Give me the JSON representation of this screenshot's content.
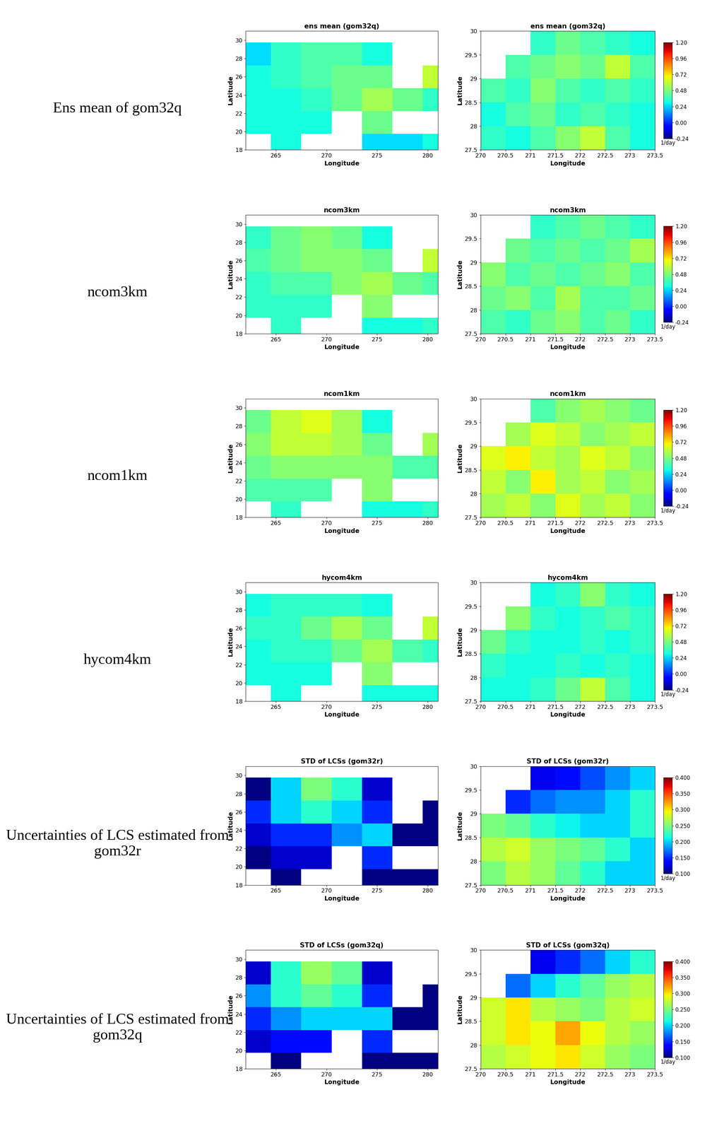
{
  "row_labels": [
    "Ens mean of gom32q",
    "ncom3km",
    "ncom1km",
    "hycom4km",
    "Uncertainties of LCS estimated from gom32r",
    "Uncertainties of LCS estimated from gom32q"
  ],
  "chart_data": [
    {
      "type": "heatmap",
      "title": "ens mean (gom32q)",
      "xlabel": "Longitude",
      "ylabel": "Latitude",
      "xlim": [
        262,
        281
      ],
      "xticks": [
        265,
        270,
        275,
        280
      ],
      "ylim": [
        18,
        31
      ],
      "yticks": [
        18,
        20,
        22,
        24,
        26,
        28,
        30
      ],
      "x": [
        263,
        266,
        269,
        272,
        275,
        278,
        281
      ],
      "y": [
        18.5,
        21,
        23.5,
        26,
        28.5,
        31
      ],
      "cells": [
        [
          null,
          0.3,
          null,
          null,
          0.25,
          0.25,
          0.3
        ],
        [
          0.3,
          0.3,
          0.3,
          null,
          0.45,
          null,
          null
        ],
        [
          0.3,
          0.3,
          0.35,
          0.45,
          0.55,
          0.45,
          0.35
        ],
        [
          0.3,
          0.35,
          0.4,
          0.45,
          0.45,
          null,
          0.6
        ],
        [
          0.25,
          0.35,
          0.4,
          0.4,
          0.3,
          null,
          null
        ],
        [
          null,
          null,
          null,
          null,
          null,
          null,
          null
        ]
      ],
      "clim": [
        -0.24,
        1.2
      ]
    },
    {
      "type": "heatmap",
      "title": "ens mean (gom32q)",
      "xlabel": "Longitude",
      "ylabel": "Latitude",
      "xlim": [
        270,
        273.5
      ],
      "xticks": [
        270,
        270.5,
        271,
        271.5,
        272,
        272.5,
        273,
        273.5
      ],
      "ylim": [
        27.5,
        30
      ],
      "yticks": [
        27.5,
        28,
        28.5,
        29,
        29.5,
        30
      ],
      "x": [
        270.25,
        270.75,
        271.25,
        271.75,
        272.25,
        272.75,
        273.25
      ],
      "y": [
        27.75,
        28.25,
        28.75,
        29.25,
        29.75
      ],
      "cells": [
        [
          0.35,
          0.3,
          0.4,
          0.5,
          0.6,
          0.4,
          0.3
        ],
        [
          0.3,
          0.4,
          0.45,
          0.35,
          0.4,
          0.35,
          0.3
        ],
        [
          0.4,
          0.35,
          0.5,
          0.4,
          0.35,
          0.4,
          0.35
        ],
        [
          null,
          0.4,
          0.45,
          0.5,
          0.45,
          0.6,
          0.4
        ],
        [
          null,
          null,
          0.35,
          0.45,
          0.4,
          0.35,
          0.3
        ]
      ],
      "clim": [
        -0.24,
        1.2
      ],
      "cticks": [
        -0.24,
        0,
        0.24,
        0.48,
        0.72,
        0.96,
        1.2
      ],
      "cticks_labels": [
        "-0.24",
        "0.00",
        "0.24",
        "0.48",
        "0.72",
        "0.96",
        "1.20"
      ],
      "clabel": "1/day"
    },
    {
      "type": "heatmap",
      "title": "ncom3km",
      "xlabel": "Longitude",
      "ylabel": "Latitude",
      "xlim": [
        262,
        281
      ],
      "xticks": [
        265,
        270,
        275,
        280
      ],
      "ylim": [
        18,
        31
      ],
      "yticks": [
        18,
        20,
        22,
        24,
        26,
        28,
        30
      ],
      "x": [
        263,
        266,
        269,
        272,
        275,
        278,
        281
      ],
      "y": [
        18.5,
        21,
        23.5,
        26,
        28.5,
        31
      ],
      "cells": [
        [
          null,
          0.35,
          null,
          null,
          0.3,
          0.3,
          0.35
        ],
        [
          0.35,
          0.35,
          0.35,
          null,
          0.5,
          null,
          null
        ],
        [
          0.35,
          0.4,
          0.4,
          0.5,
          0.55,
          0.45,
          0.4
        ],
        [
          0.4,
          0.45,
          0.5,
          0.5,
          0.45,
          null,
          0.6
        ],
        [
          0.35,
          0.45,
          0.5,
          0.45,
          0.3,
          null,
          null
        ],
        [
          null,
          null,
          null,
          null,
          null,
          null,
          null
        ]
      ],
      "clim": [
        -0.24,
        1.2
      ]
    },
    {
      "type": "heatmap",
      "title": "ncom3km",
      "xlabel": "Longitude",
      "ylabel": "Latitude",
      "xlim": [
        270,
        273.5
      ],
      "xticks": [
        270,
        270.5,
        271,
        271.5,
        272,
        272.5,
        273,
        273.5
      ],
      "ylim": [
        27.5,
        30
      ],
      "yticks": [
        27.5,
        28,
        28.5,
        29,
        29.5,
        30
      ],
      "x": [
        270.25,
        270.75,
        271.25,
        271.75,
        272.25,
        272.75,
        273.25
      ],
      "y": [
        27.75,
        28.25,
        28.75,
        29.25,
        29.75
      ],
      "cells": [
        [
          0.4,
          0.35,
          0.45,
          0.5,
          0.4,
          0.45,
          0.35
        ],
        [
          0.45,
          0.5,
          0.4,
          0.55,
          0.4,
          0.4,
          0.45
        ],
        [
          0.5,
          0.4,
          0.45,
          0.4,
          0.45,
          0.5,
          0.4
        ],
        [
          null,
          0.45,
          0.4,
          0.45,
          0.4,
          0.45,
          0.55
        ],
        [
          null,
          null,
          0.35,
          0.4,
          0.45,
          0.4,
          0.35
        ]
      ],
      "clim": [
        -0.24,
        1.2
      ],
      "cticks": [
        -0.24,
        0,
        0.24,
        0.48,
        0.72,
        0.96,
        1.2
      ],
      "cticks_labels": [
        "-0.24",
        "0.00",
        "0.24",
        "0.48",
        "0.72",
        "0.96",
        "1.20"
      ],
      "clabel": "1/day"
    },
    {
      "type": "heatmap",
      "title": "ncom1km",
      "xlabel": "Longitude",
      "ylabel": "Latitude",
      "xlim": [
        262,
        281
      ],
      "xticks": [
        265,
        270,
        275,
        280
      ],
      "ylim": [
        18,
        31
      ],
      "yticks": [
        18,
        20,
        22,
        24,
        26,
        28,
        30
      ],
      "x": [
        263,
        266,
        269,
        272,
        275,
        278,
        281
      ],
      "y": [
        18.5,
        21,
        23.5,
        26,
        28.5,
        31
      ],
      "cells": [
        [
          null,
          0.35,
          null,
          null,
          0.3,
          0.3,
          0.35
        ],
        [
          0.4,
          0.4,
          0.4,
          null,
          0.5,
          null,
          null
        ],
        [
          0.45,
          0.5,
          0.5,
          0.5,
          0.5,
          0.4,
          0.4
        ],
        [
          0.5,
          0.6,
          0.6,
          0.55,
          0.45,
          null,
          0.55
        ],
        [
          0.45,
          0.6,
          0.65,
          0.55,
          0.3,
          null,
          null
        ],
        [
          null,
          null,
          null,
          null,
          null,
          null,
          null
        ]
      ],
      "clim": [
        -0.24,
        1.2
      ]
    },
    {
      "type": "heatmap",
      "title": "ncom1km",
      "xlabel": "Longitude",
      "ylabel": "Latitude",
      "xlim": [
        270,
        273.5
      ],
      "xticks": [
        270,
        270.5,
        271,
        271.5,
        272,
        272.5,
        273,
        273.5
      ],
      "ylim": [
        27.5,
        30
      ],
      "yticks": [
        27.5,
        28,
        28.5,
        29,
        29.5,
        30
      ],
      "x": [
        270.25,
        270.75,
        271.25,
        271.75,
        272.25,
        272.75,
        273.25
      ],
      "y": [
        27.75,
        28.25,
        28.75,
        29.25,
        29.75
      ],
      "cells": [
        [
          0.55,
          0.6,
          0.5,
          0.65,
          0.55,
          0.6,
          0.5
        ],
        [
          0.6,
          0.5,
          0.7,
          0.55,
          0.6,
          0.5,
          0.55
        ],
        [
          0.65,
          0.7,
          0.6,
          0.55,
          0.65,
          0.6,
          0.5
        ],
        [
          null,
          0.55,
          0.65,
          0.6,
          0.5,
          0.55,
          0.6
        ],
        [
          null,
          null,
          0.4,
          0.5,
          0.55,
          0.5,
          0.45
        ]
      ],
      "clim": [
        -0.24,
        1.2
      ],
      "cticks": [
        -0.24,
        0,
        0.24,
        0.48,
        0.72,
        0.96,
        1.2
      ],
      "cticks_labels": [
        "-0.24",
        "0.00",
        "0.24",
        "0.48",
        "0.72",
        "0.96",
        "1.20"
      ],
      "clabel": "1/day"
    },
    {
      "type": "heatmap",
      "title": "hycom4km",
      "xlabel": "Longitude",
      "ylabel": "Latitude",
      "xlim": [
        262,
        281
      ],
      "xticks": [
        265,
        270,
        275,
        280
      ],
      "ylim": [
        18,
        31
      ],
      "yticks": [
        18,
        20,
        22,
        24,
        26,
        28,
        30
      ],
      "x": [
        263,
        266,
        269,
        272,
        275,
        278,
        281
      ],
      "y": [
        18.5,
        21,
        23.5,
        26,
        28.5,
        31
      ],
      "cells": [
        [
          null,
          0.3,
          null,
          null,
          0.3,
          0.3,
          0.3
        ],
        [
          0.3,
          0.3,
          0.3,
          null,
          0.5,
          null,
          null
        ],
        [
          0.3,
          0.35,
          0.35,
          0.45,
          0.55,
          0.4,
          0.35
        ],
        [
          0.35,
          0.35,
          0.45,
          0.55,
          0.45,
          null,
          0.6
        ],
        [
          0.3,
          0.35,
          0.35,
          0.35,
          0.3,
          null,
          null
        ],
        [
          null,
          null,
          null,
          null,
          null,
          null,
          null
        ]
      ],
      "clim": [
        -0.24,
        1.2
      ]
    },
    {
      "type": "heatmap",
      "title": "hycom4km",
      "xlabel": "Longitude",
      "ylabel": "Latitude",
      "xlim": [
        270,
        273.5
      ],
      "xticks": [
        270,
        270.5,
        271,
        271.5,
        272,
        272.5,
        273,
        273.5
      ],
      "ylim": [
        27.5,
        30
      ],
      "yticks": [
        27.5,
        28,
        28.5,
        29,
        29.5,
        30
      ],
      "x": [
        270.25,
        270.75,
        271.25,
        271.75,
        272.25,
        272.75,
        273.25
      ],
      "y": [
        27.75,
        28.25,
        28.75,
        29.25,
        29.75
      ],
      "cells": [
        [
          0.3,
          0.3,
          0.35,
          0.45,
          0.6,
          0.4,
          0.3
        ],
        [
          0.35,
          0.3,
          0.3,
          0.35,
          0.3,
          0.35,
          0.3
        ],
        [
          0.45,
          0.35,
          0.3,
          0.3,
          0.35,
          0.3,
          0.35
        ],
        [
          null,
          0.5,
          0.35,
          0.3,
          0.35,
          0.4,
          0.35
        ],
        [
          null,
          null,
          0.3,
          0.35,
          0.5,
          0.35,
          0.3
        ]
      ],
      "clim": [
        -0.24,
        1.2
      ],
      "cticks": [
        -0.24,
        0,
        0.24,
        0.48,
        0.72,
        0.96,
        1.2
      ],
      "cticks_labels": [
        "-0.24",
        "0.00",
        "0.24",
        "0.48",
        "0.72",
        "0.96",
        "1.20"
      ],
      "clabel": "1/day"
    },
    {
      "type": "heatmap",
      "title": "STD of LCSs (gom32r)",
      "xlabel": "Longitude",
      "ylabel": "Latitude",
      "xlim": [
        262,
        281
      ],
      "xticks": [
        265,
        270,
        275,
        280
      ],
      "ylim": [
        18,
        31
      ],
      "yticks": [
        18,
        20,
        22,
        24,
        26,
        28,
        30
      ],
      "x": [
        263,
        266,
        269,
        272,
        275,
        278,
        281
      ],
      "y": [
        18.5,
        21,
        23.5,
        26,
        28.5,
        31
      ],
      "cells": [
        [
          null,
          0.1,
          null,
          null,
          0.1,
          0.1,
          0.1
        ],
        [
          0.1,
          0.12,
          0.12,
          null,
          0.15,
          null,
          null
        ],
        [
          0.12,
          0.15,
          0.15,
          0.18,
          0.2,
          0.1,
          0.1
        ],
        [
          0.15,
          0.2,
          0.22,
          0.2,
          0.15,
          null,
          0.1
        ],
        [
          0.1,
          0.2,
          0.25,
          0.22,
          0.12,
          null,
          null
        ],
        [
          null,
          null,
          null,
          null,
          null,
          null,
          null
        ]
      ],
      "clim": [
        0.1,
        0.4
      ]
    },
    {
      "type": "heatmap",
      "title": "STD of LCSs (gom32r)",
      "xlabel": "Longitude",
      "ylabel": "Latitude",
      "xlim": [
        270,
        273.5
      ],
      "xticks": [
        270,
        270.5,
        271,
        271.5,
        272,
        272.5,
        273,
        273.5
      ],
      "ylim": [
        27.5,
        30
      ],
      "yticks": [
        27.5,
        28,
        28.5,
        29,
        29.5,
        30
      ],
      "x": [
        270.25,
        270.75,
        271.25,
        271.75,
        272.25,
        272.75,
        273.25
      ],
      "y": [
        27.75,
        28.25,
        28.75,
        29.25,
        29.75
      ],
      "cells": [
        [
          0.25,
          0.27,
          0.26,
          0.24,
          0.22,
          0.2,
          0.2
        ],
        [
          0.27,
          0.28,
          0.26,
          0.25,
          0.24,
          0.22,
          0.2
        ],
        [
          0.25,
          0.24,
          0.22,
          0.21,
          0.2,
          0.2,
          0.22
        ],
        [
          null,
          0.15,
          0.17,
          0.18,
          0.18,
          0.2,
          0.22
        ],
        [
          null,
          null,
          0.13,
          0.14,
          0.16,
          0.18,
          0.2
        ]
      ],
      "clim": [
        0.1,
        0.4
      ],
      "cticks": [
        0.1,
        0.15,
        0.2,
        0.25,
        0.3,
        0.35,
        0.4
      ],
      "cticks_labels": [
        "0.100",
        "0.150",
        "0.200",
        "0.250",
        "0.300",
        "0.350",
        "0.400"
      ],
      "clabel": "1/day"
    },
    {
      "type": "heatmap",
      "title": "STD of LCSs (gom32q)",
      "xlabel": "Longitude",
      "ylabel": "Latitude",
      "xlim": [
        262,
        281
      ],
      "xticks": [
        265,
        270,
        275,
        280
      ],
      "ylim": [
        18,
        31
      ],
      "yticks": [
        18,
        20,
        22,
        24,
        26,
        28,
        30
      ],
      "x": [
        263,
        266,
        269,
        272,
        275,
        278,
        281
      ],
      "y": [
        18.5,
        21,
        23.5,
        26,
        28.5,
        31
      ],
      "cells": [
        [
          null,
          0.1,
          null,
          null,
          0.1,
          0.1,
          0.1
        ],
        [
          0.12,
          0.14,
          0.14,
          null,
          0.15,
          null,
          null
        ],
        [
          0.15,
          0.18,
          0.2,
          0.2,
          0.2,
          0.1,
          0.1
        ],
        [
          0.18,
          0.22,
          0.24,
          0.22,
          0.15,
          null,
          0.1
        ],
        [
          0.12,
          0.22,
          0.26,
          0.24,
          0.12,
          null,
          null
        ],
        [
          null,
          null,
          null,
          null,
          null,
          null,
          null
        ]
      ],
      "clim": [
        0.1,
        0.4
      ]
    },
    {
      "type": "heatmap",
      "title": "STD of LCSs (gom32q)",
      "xlabel": "Longitude",
      "ylabel": "Latitude",
      "xlim": [
        270,
        273.5
      ],
      "xticks": [
        270,
        270.5,
        271,
        271.5,
        272,
        272.5,
        273,
        273.5
      ],
      "ylim": [
        27.5,
        30
      ],
      "yticks": [
        27.5,
        28,
        28.5,
        29,
        29.5,
        30
      ],
      "x": [
        270.25,
        270.75,
        271.25,
        271.75,
        272.25,
        272.75,
        273.25
      ],
      "y": [
        27.75,
        28.25,
        28.75,
        29.25,
        29.75
      ],
      "cells": [
        [
          0.27,
          0.28,
          0.29,
          0.3,
          0.28,
          0.26,
          0.25
        ],
        [
          0.28,
          0.3,
          0.29,
          0.32,
          0.29,
          0.27,
          0.26
        ],
        [
          0.28,
          0.3,
          0.27,
          0.26,
          0.25,
          0.27,
          0.28
        ],
        [
          null,
          0.17,
          0.2,
          0.22,
          0.24,
          0.26,
          0.27
        ],
        [
          null,
          null,
          0.13,
          0.15,
          0.17,
          0.2,
          0.22
        ]
      ],
      "clim": [
        0.1,
        0.4
      ],
      "cticks": [
        0.1,
        0.15,
        0.2,
        0.25,
        0.3,
        0.35,
        0.4
      ],
      "cticks_labels": [
        "0.100",
        "0.150",
        "0.200",
        "0.250",
        "0.300",
        "0.350",
        "0.400"
      ],
      "clabel": "1/day"
    }
  ]
}
